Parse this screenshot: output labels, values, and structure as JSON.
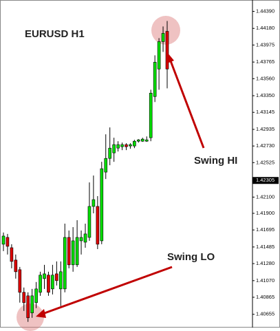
{
  "chart_data": {
    "type": "candlestick",
    "title": "EURUSD H1",
    "annotations": [
      "Swing HI",
      "Swing LO"
    ],
    "open": [
      1.41519,
      1.41603,
      1.41476,
      1.41324,
      1.41205,
      1.40926,
      1.40883,
      1.40672,
      1.40799,
      1.40926,
      1.41095,
      1.41138,
      1.40968,
      1.41154,
      1.40968,
      1.40968,
      1.41603,
      1.41265,
      1.41265,
      1.41561,
      1.41544,
      1.41603,
      1.41985,
      1.41985,
      1.41561,
      1.42408,
      1.42577,
      1.42645,
      1.42704,
      1.42721,
      1.42747,
      1.4273,
      1.4273,
      1.42789,
      1.42789,
      1.42789,
      1.42832,
      1.4334,
      1.43679,
      1.44017,
      1.44144
    ],
    "high": [
      1.41663,
      1.41646,
      1.41519,
      1.41392,
      1.41239,
      1.40985,
      1.40926,
      1.40968,
      1.41053,
      1.4118,
      1.41265,
      1.4118,
      1.41265,
      1.41307,
      1.41307,
      1.41773,
      1.41688,
      1.4173,
      1.41815,
      1.41688,
      1.41773,
      1.42281,
      1.42366,
      1.42112,
      1.42535,
      1.42874,
      1.42959,
      1.42832,
      1.42789,
      1.42772,
      1.42764,
      1.42764,
      1.42806,
      1.42815,
      1.42832,
      1.42848,
      1.43424,
      1.43848,
      1.4406,
      1.44204,
      1.44271
    ],
    "low": [
      1.41434,
      1.41392,
      1.41222,
      1.41095,
      1.40799,
      1.40697,
      1.40562,
      1.40612,
      1.40731,
      1.40883,
      1.40968,
      1.40883,
      1.409,
      1.4101,
      1.40756,
      1.40926,
      1.41222,
      1.4118,
      1.41239,
      1.41392,
      1.41476,
      1.41561,
      1.419,
      1.41459,
      1.41519,
      1.42323,
      1.42493,
      1.42535,
      1.42662,
      1.42679,
      1.42679,
      1.42696,
      1.42704,
      1.42772,
      1.42781,
      1.42781,
      1.42789,
      1.43272,
      1.43424,
      1.4389,
      1.43441
    ],
    "close": [
      1.4162,
      1.41493,
      1.41307,
      1.4118,
      1.40926,
      1.40799,
      1.40612,
      1.40883,
      1.40968,
      1.41138,
      1.41154,
      1.40926,
      1.41138,
      1.4107,
      1.4118,
      1.41603,
      1.41265,
      1.41561,
      1.41603,
      1.41603,
      1.41646,
      1.41985,
      1.42069,
      1.41519,
      1.4245,
      1.42577,
      1.42704,
      1.42747,
      1.42747,
      1.42747,
      1.42721,
      1.42747,
      1.42789,
      1.42806,
      1.42815,
      1.42806,
      1.43382,
      1.43763,
      1.44017,
      1.44119,
      1.43679
    ],
    "up_color": "#00dd00",
    "down_color": "#dd0000",
    "ylim": [
      1.405,
      1.4453
    ],
    "yticks": [
      {
        "value": 1.4439,
        "label": "1.44390"
      },
      {
        "value": 1.4418,
        "label": "1.44180"
      },
      {
        "value": 1.43975,
        "label": "1.43975"
      },
      {
        "value": 1.43765,
        "label": "1.43765"
      },
      {
        "value": 1.4356,
        "label": "1.43560"
      },
      {
        "value": 1.4335,
        "label": "1.43350"
      },
      {
        "value": 1.43145,
        "label": "1.43145"
      },
      {
        "value": 1.42935,
        "label": "1.42935"
      },
      {
        "value": 1.4273,
        "label": "1.42730"
      },
      {
        "value": 1.42525,
        "label": "1.42525"
      },
      {
        "value": 1.421,
        "label": "1.42100"
      },
      {
        "value": 1.419,
        "label": "1.41900"
      },
      {
        "value": 1.41695,
        "label": "1.41695"
      },
      {
        "value": 1.41485,
        "label": "1.41485"
      },
      {
        "value": 1.4128,
        "label": "1.41280"
      },
      {
        "value": 1.4107,
        "label": "1.41070"
      },
      {
        "value": 1.40865,
        "label": "1.40865"
      },
      {
        "value": 1.40655,
        "label": "1.40655"
      }
    ],
    "current_price": {
      "value": 1.42305,
      "label": "1.42305"
    }
  }
}
